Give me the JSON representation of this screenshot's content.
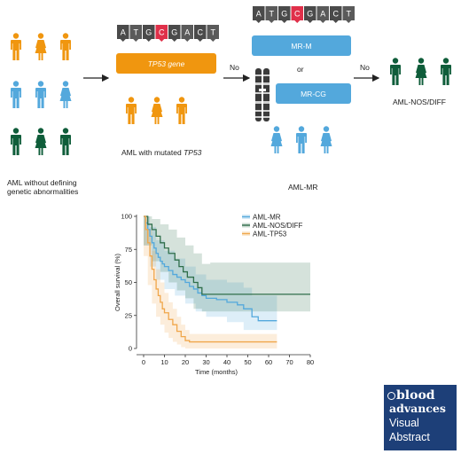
{
  "flow": {
    "start_label_line1": "AML without defining",
    "start_label_line2": "genetic abnormalities",
    "tp53_box": "TP53 gene",
    "tp53_group_prefix": "AML with mutated ",
    "tp53_group_gene": "TP53",
    "no_label": "No",
    "mrm_box": "MR-M",
    "or_label": "or",
    "mrcg_box": "MR-CG",
    "mr_group_label": "AML-MR",
    "nos_group_label": "AML-NOS/DIFF",
    "dna_letters": [
      "A",
      "T",
      "G",
      "C",
      "G",
      "A",
      "C",
      "T"
    ],
    "mutated_index": 3
  },
  "colors": {
    "orange": "#f0960f",
    "blue": "#53a8dc",
    "green": "#0f5d3a",
    "red": "#e0304a",
    "dna_dark": "#4a4a4a"
  },
  "chart_data": {
    "type": "line",
    "xlabel": "Time (months)",
    "ylabel": "Overall survival (%)",
    "xlim": [
      0,
      80
    ],
    "ylim": [
      0,
      100
    ],
    "xticks": [
      0,
      10,
      20,
      30,
      40,
      50,
      60,
      70,
      80
    ],
    "yticks": [
      0,
      25,
      50,
      75,
      100
    ],
    "legend_position": "top-right",
    "series": [
      {
        "name": "AML-MR",
        "color": "#53a8dc",
        "points": [
          [
            0,
            100
          ],
          [
            1,
            95
          ],
          [
            2,
            90
          ],
          [
            3,
            85
          ],
          [
            4,
            80
          ],
          [
            5,
            76
          ],
          [
            6,
            72
          ],
          [
            7,
            69
          ],
          [
            8,
            66
          ],
          [
            9,
            64
          ],
          [
            10,
            62
          ],
          [
            12,
            59
          ],
          [
            14,
            56
          ],
          [
            16,
            54
          ],
          [
            18,
            52
          ],
          [
            20,
            50
          ],
          [
            22,
            47
          ],
          [
            24,
            45
          ],
          [
            26,
            42
          ],
          [
            28,
            40
          ],
          [
            30,
            38
          ],
          [
            35,
            37
          ],
          [
            40,
            35
          ],
          [
            45,
            33
          ],
          [
            48,
            30
          ],
          [
            52,
            24
          ],
          [
            55,
            21
          ],
          [
            64,
            21
          ]
        ],
        "ci_upper": [
          [
            0,
            100
          ],
          [
            3,
            92
          ],
          [
            6,
            82
          ],
          [
            10,
            74
          ],
          [
            15,
            68
          ],
          [
            20,
            62
          ],
          [
            25,
            56
          ],
          [
            30,
            52
          ],
          [
            40,
            50
          ],
          [
            48,
            46
          ],
          [
            52,
            40
          ],
          [
            64,
            40
          ]
        ],
        "ci_lower": [
          [
            0,
            100
          ],
          [
            3,
            78
          ],
          [
            6,
            62
          ],
          [
            10,
            52
          ],
          [
            15,
            45
          ],
          [
            20,
            40
          ],
          [
            25,
            34
          ],
          [
            30,
            28
          ],
          [
            40,
            24
          ],
          [
            48,
            20
          ],
          [
            52,
            14
          ],
          [
            64,
            14
          ]
        ]
      },
      {
        "name": "AML-NOS/DIFF",
        "color": "#2f6e4a",
        "points": [
          [
            0,
            100
          ],
          [
            2,
            94
          ],
          [
            4,
            90
          ],
          [
            6,
            85
          ],
          [
            8,
            80
          ],
          [
            10,
            76
          ],
          [
            12,
            72
          ],
          [
            15,
            67
          ],
          [
            17,
            62
          ],
          [
            19,
            58
          ],
          [
            21,
            54
          ],
          [
            24,
            50
          ],
          [
            26,
            46
          ],
          [
            28,
            41
          ],
          [
            30,
            41
          ],
          [
            40,
            41
          ],
          [
            50,
            41
          ],
          [
            60,
            41
          ],
          [
            80,
            41
          ]
        ],
        "ci_upper": [
          [
            0,
            100
          ],
          [
            4,
            98
          ],
          [
            8,
            94
          ],
          [
            12,
            90
          ],
          [
            16,
            84
          ],
          [
            20,
            78
          ],
          [
            24,
            72
          ],
          [
            28,
            64
          ],
          [
            32,
            65
          ],
          [
            80,
            65
          ]
        ],
        "ci_lower": [
          [
            0,
            100
          ],
          [
            4,
            78
          ],
          [
            8,
            66
          ],
          [
            12,
            58
          ],
          [
            16,
            50
          ],
          [
            20,
            44
          ],
          [
            24,
            38
          ],
          [
            28,
            30
          ],
          [
            32,
            28
          ],
          [
            80,
            28
          ]
        ]
      },
      {
        "name": "AML-TP53",
        "color": "#f0a64a",
        "points": [
          [
            0,
            100
          ],
          [
            1,
            90
          ],
          [
            2,
            80
          ],
          [
            3,
            70
          ],
          [
            4,
            60
          ],
          [
            5,
            52
          ],
          [
            6,
            45
          ],
          [
            7,
            40
          ],
          [
            8,
            35
          ],
          [
            9,
            30
          ],
          [
            10,
            27
          ],
          [
            12,
            22
          ],
          [
            14,
            18
          ],
          [
            16,
            13
          ],
          [
            18,
            9
          ],
          [
            20,
            6
          ],
          [
            22,
            5
          ],
          [
            26,
            5
          ],
          [
            64,
            5
          ]
        ],
        "ci_upper": [
          [
            0,
            100
          ],
          [
            2,
            90
          ],
          [
            4,
            74
          ],
          [
            6,
            60
          ],
          [
            8,
            50
          ],
          [
            10,
            42
          ],
          [
            12,
            35
          ],
          [
            14,
            30
          ],
          [
            16,
            24
          ],
          [
            18,
            18
          ],
          [
            20,
            14
          ],
          [
            22,
            11
          ],
          [
            64,
            11
          ]
        ],
        "ci_lower": [
          [
            0,
            100
          ],
          [
            2,
            70
          ],
          [
            4,
            48
          ],
          [
            6,
            34
          ],
          [
            8,
            24
          ],
          [
            10,
            18
          ],
          [
            12,
            12
          ],
          [
            14,
            8
          ],
          [
            16,
            5
          ],
          [
            18,
            3
          ],
          [
            20,
            1
          ],
          [
            22,
            0
          ],
          [
            64,
            0
          ]
        ]
      }
    ]
  },
  "badge": {
    "line1": "blood",
    "line2": "advances",
    "line3": "Visual",
    "line4": "Abstract"
  }
}
